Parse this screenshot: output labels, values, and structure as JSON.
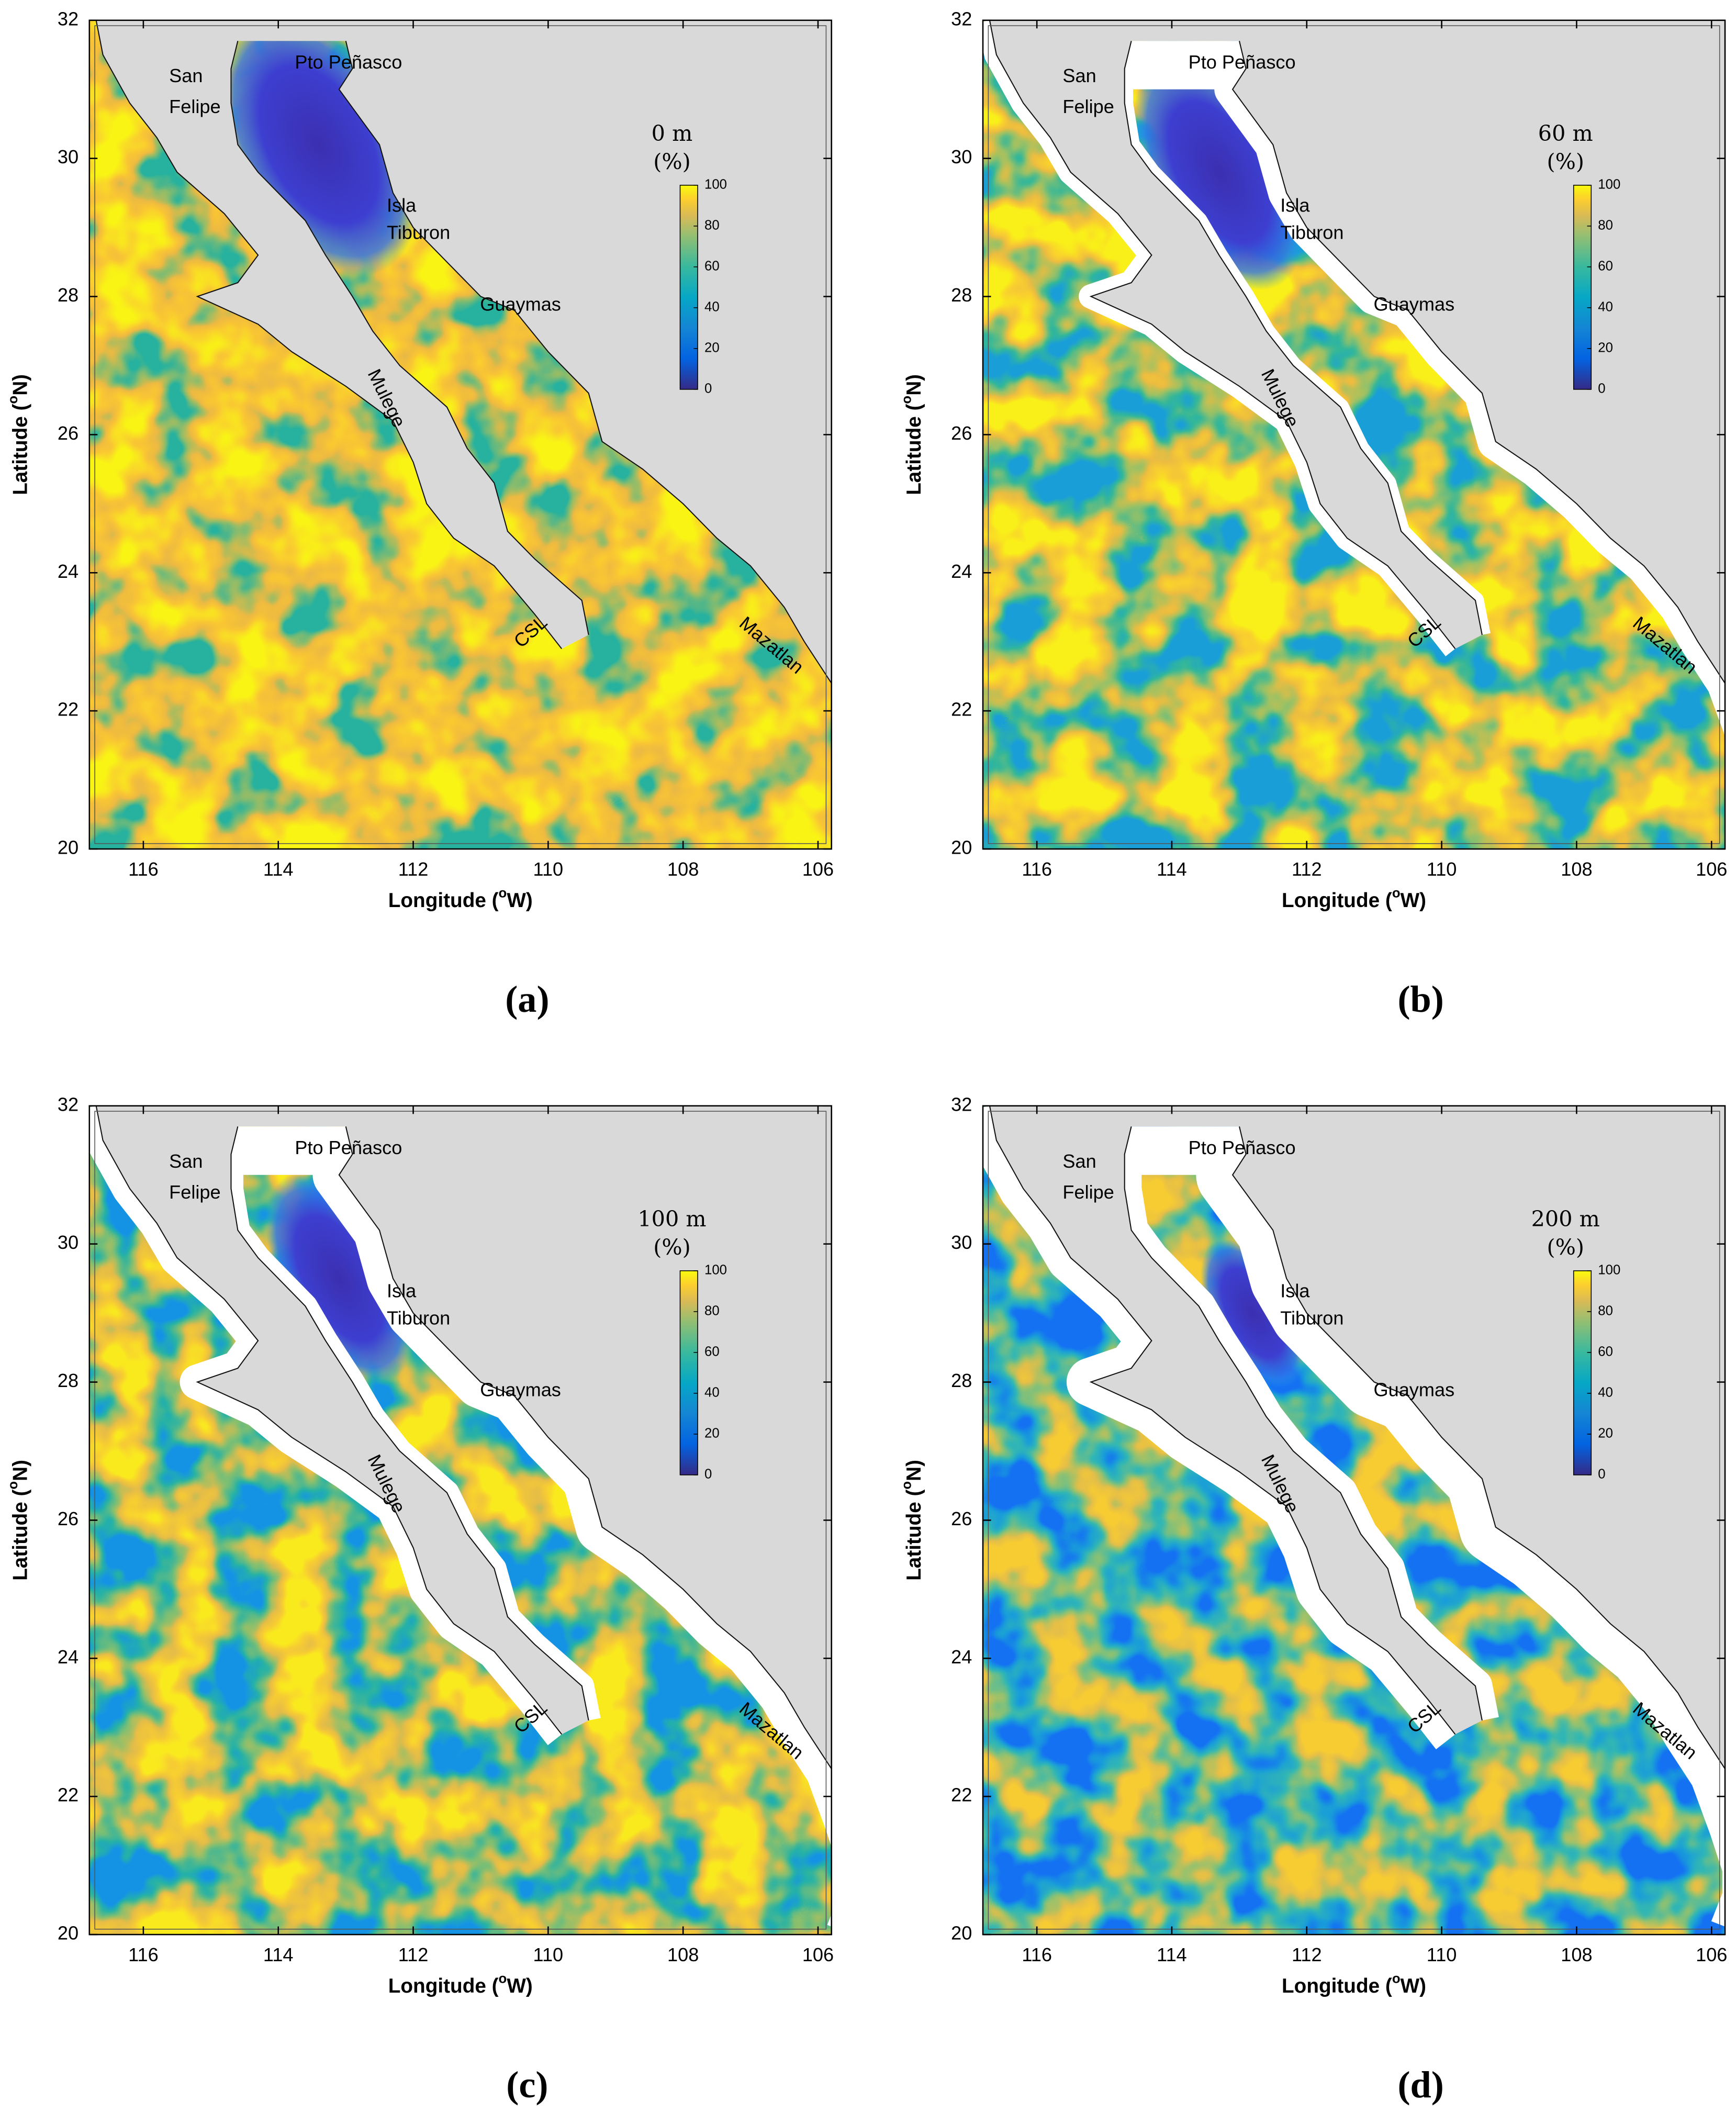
{
  "panels": [
    {
      "label": "(a)",
      "depth": "0 m",
      "unit": "(%)"
    },
    {
      "label": "(b)",
      "depth": "60 m",
      "unit": "(%)"
    },
    {
      "label": "(c)",
      "depth": "100 m",
      "unit": "(%)"
    },
    {
      "label": "(d)",
      "depth": "200 m",
      "unit": "(%)"
    }
  ],
  "axes": {
    "xlabel": [
      "Longitude (",
      "o",
      "W)"
    ],
    "ylabel": [
      "Latitude (",
      "o",
      "N)"
    ],
    "xlim": [
      116.8,
      105.8
    ],
    "ylim": [
      20,
      32
    ],
    "xticks": [
      116,
      114,
      112,
      110,
      108,
      106
    ],
    "yticks": [
      20,
      22,
      24,
      26,
      28,
      30,
      32
    ]
  },
  "colorbar": {
    "clim": [
      0,
      100
    ],
    "ticks": [
      0,
      20,
      40,
      60,
      80,
      100
    ]
  },
  "places": [
    "Pto Peñasco",
    "San",
    "Felipe",
    "Isla",
    "Tiburon",
    "Guaymas",
    "Mulege",
    "CSL",
    "Mazatlan"
  ]
}
